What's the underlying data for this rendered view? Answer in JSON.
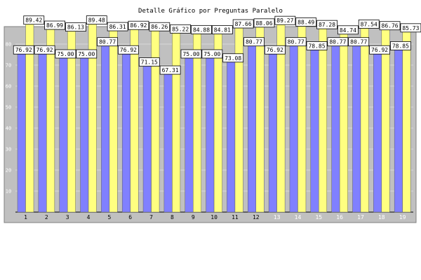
{
  "chart_data": {
    "type": "bar",
    "title": "Detalle Gráfico por Preguntas Paralelo",
    "xlabel": "",
    "ylabel": "",
    "ylim": [
      0,
      100
    ],
    "yticks": [
      10,
      20,
      30,
      40,
      50,
      60,
      70,
      80
    ],
    "grid": true,
    "categories": [
      "1",
      "2",
      "3",
      "4",
      "5",
      "6",
      "7",
      "8",
      "9",
      "10",
      "11",
      "12",
      "13",
      "14",
      "15",
      "16",
      "17",
      "18",
      "19"
    ],
    "series": [
      {
        "color": "#8080ff",
        "values": [
          76.92,
          76.92,
          75.0,
          75.0,
          80.77,
          76.92,
          71.15,
          67.31,
          75.0,
          75.0,
          73.08,
          80.77,
          76.92,
          80.77,
          78.85,
          80.77,
          80.77,
          76.92,
          78.85
        ]
      },
      {
        "color": "#ffff80",
        "values": [
          89.42,
          86.99,
          86.13,
          89.48,
          86.31,
          86.92,
          86.26,
          85.22,
          84.88,
          84.81,
          87.66,
          88.06,
          89.27,
          88.49,
          87.28,
          84.74,
          87.54,
          86.76,
          85.73
        ]
      }
    ],
    "colors": {
      "plot_background": "#c0c0c0",
      "frame": "#808080",
      "tick_label_dark": "#000000",
      "tick_label_light": "#ffffff"
    }
  }
}
